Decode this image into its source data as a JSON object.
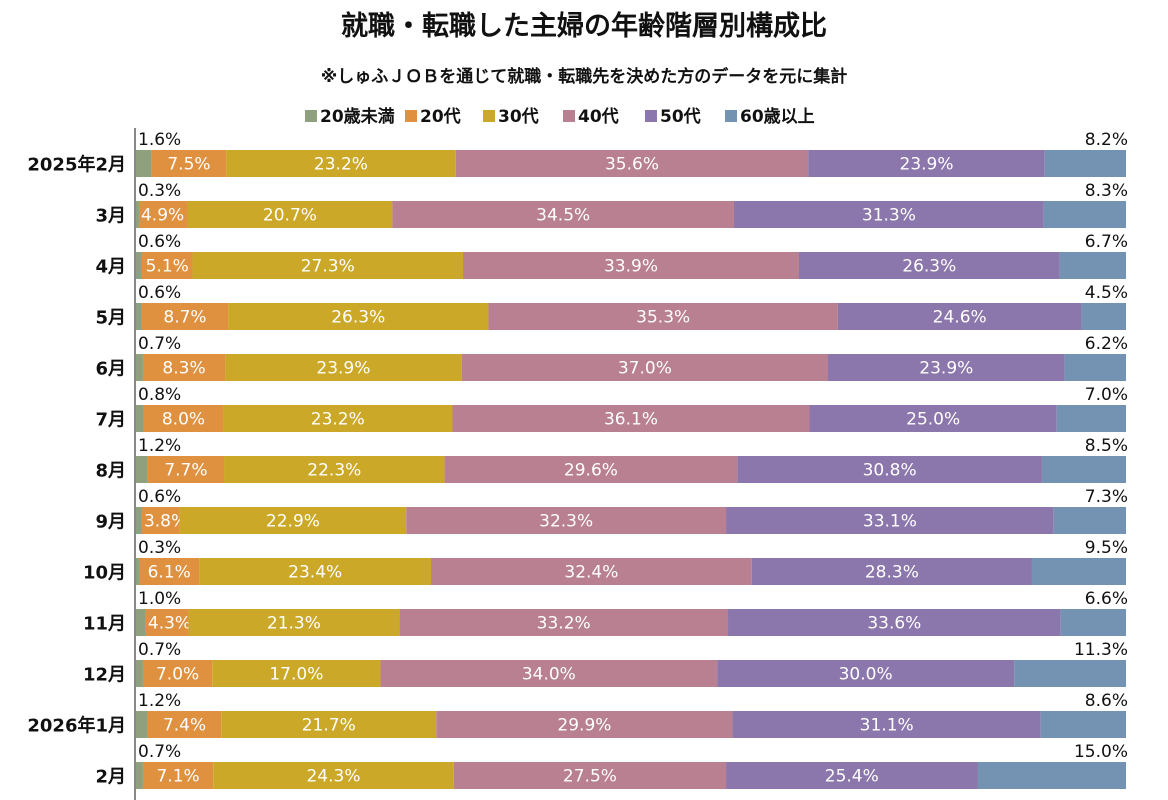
{
  "chart_data": {
    "type": "bar",
    "orientation": "horizontal",
    "stacked": "percent",
    "title": "就職・転職した主婦の年齢階層別構成比",
    "subtitle": "※しゅふＪＯＢを通じて就職・転職先を決めた方のデータを元に集計",
    "legend_position": "top",
    "grid": false,
    "categories": [
      "2025年2月",
      "3月",
      "4月",
      "5月",
      "6月",
      "7月",
      "8月",
      "9月",
      "10月",
      "11月",
      "12月",
      "2026年1月",
      "2月"
    ],
    "series": [
      {
        "name": "20歳未満",
        "color": "#8fa07e",
        "values": [
          1.6,
          0.3,
          0.6,
          0.6,
          0.7,
          0.8,
          1.2,
          0.6,
          0.3,
          1.0,
          0.7,
          1.2,
          0.7
        ]
      },
      {
        "name": "20代",
        "color": "#e0913f",
        "values": [
          7.5,
          4.9,
          5.1,
          8.7,
          8.3,
          8.0,
          7.7,
          3.8,
          6.1,
          4.3,
          7.0,
          7.4,
          7.1
        ]
      },
      {
        "name": "30代",
        "color": "#cca829",
        "values": [
          23.2,
          20.7,
          27.3,
          26.3,
          23.9,
          23.2,
          22.3,
          22.9,
          23.4,
          21.3,
          17.0,
          21.7,
          24.3
        ]
      },
      {
        "name": "40代",
        "color": "#b88091",
        "values": [
          35.6,
          34.5,
          33.9,
          35.3,
          37.0,
          36.1,
          29.6,
          32.3,
          32.4,
          33.2,
          34.0,
          29.9,
          27.5
        ]
      },
      {
        "name": "50代",
        "color": "#8b77ab",
        "values": [
          23.9,
          31.3,
          26.3,
          24.6,
          23.9,
          25.0,
          30.8,
          33.1,
          28.3,
          33.6,
          30.0,
          31.1,
          25.4
        ]
      },
      {
        "name": "60歳以上",
        "color": "#7492b1",
        "values": [
          8.2,
          8.3,
          6.7,
          4.5,
          6.2,
          7.0,
          8.5,
          7.3,
          9.5,
          6.6,
          11.3,
          8.6,
          15.0
        ]
      }
    ],
    "value_suffix": "%"
  }
}
